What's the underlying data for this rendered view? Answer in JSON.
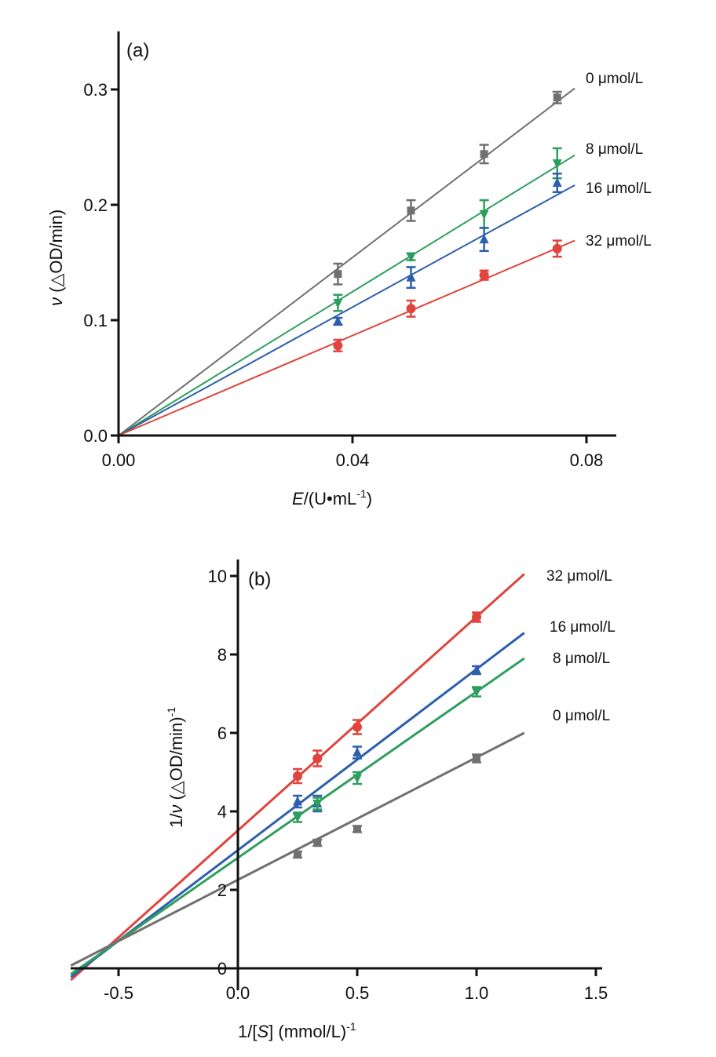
{
  "chart_data": [
    {
      "type": "line",
      "panel_label": "(a)",
      "xlabel_italic": "E",
      "xlabel_rest": "/(U•mL",
      "xlabel_sup": "-1",
      "xlabel_close": ")",
      "ylabel_italic": "ν",
      "ylabel_rest": " (△OD/min)",
      "xlim": [
        0,
        0.085
      ],
      "ylim": [
        0,
        0.35
      ],
      "xticks": [
        0,
        0.04,
        0.08
      ],
      "xtick_labels": [
        "0.00",
        "0.04",
        "0.08"
      ],
      "yticks": [
        0,
        0.1,
        0.2,
        0.3
      ],
      "ytick_labels": [
        "0.0",
        "0.1",
        "0.2",
        "0.3"
      ],
      "grid": false,
      "fit_x_range": [
        0,
        0.078
      ],
      "x": [
        0.0375,
        0.05,
        0.0625,
        0.075
      ],
      "series": [
        {
          "name": "0 μmol/L",
          "color": "#707070",
          "marker": "square",
          "values": [
            0.14,
            0.195,
            0.244,
            0.293
          ],
          "errors": [
            0.009,
            0.009,
            0.008,
            0.005
          ],
          "fit": [
            0,
            0.301
          ]
        },
        {
          "name": "8 μmol/L",
          "color": "#2e9e5e",
          "marker": "triangle-down",
          "values": [
            0.115,
            0.155,
            0.192,
            0.236
          ],
          "errors": [
            0.007,
            0.003,
            0.012,
            0.013
          ],
          "fit": [
            0,
            0.243
          ]
        },
        {
          "name": "16 μmol/L",
          "color": "#2d5fad",
          "marker": "triangle-up",
          "values": [
            0.099,
            0.137,
            0.17,
            0.219
          ],
          "errors": [
            0.003,
            0.009,
            0.01,
            0.008
          ],
          "fit": [
            0,
            0.217
          ]
        },
        {
          "name": "32 μmol/L",
          "color": "#e0443c",
          "marker": "circle",
          "values": [
            0.078,
            0.11,
            0.139,
            0.162
          ],
          "errors": [
            0.005,
            0.007,
            0.004,
            0.007
          ],
          "fit": [
            0,
            0.169
          ]
        }
      ]
    },
    {
      "type": "line",
      "panel_label": "(b)",
      "xlabel_pre": "1/[",
      "xlabel_italic": "S",
      "xlabel_rest": "] (mmol/L)",
      "xlabel_sup": "-1",
      "ylabel_pre": "1/",
      "ylabel_italic": "ν",
      "ylabel_rest": " (△OD/min)",
      "ylabel_sup": "-1",
      "xlim": [
        -0.7,
        1.53
      ],
      "ylim": [
        -0.5,
        10.5
      ],
      "xticks": [
        -0.5,
        0,
        0.5,
        1.0,
        1.5
      ],
      "xtick_labels": [
        "-0.5",
        "0.0",
        "0.5",
        "1.0",
        "1.5"
      ],
      "yticks": [
        0,
        2,
        4,
        6,
        8,
        10
      ],
      "ytick_labels": [
        "0",
        "2",
        "4",
        "6",
        "8",
        "10"
      ],
      "grid": false,
      "fit_x_range": [
        -0.7,
        1.2
      ],
      "x": [
        0.25,
        0.333,
        0.5,
        1.0
      ],
      "series": [
        {
          "name": "32 μmol/L",
          "color": "#e0443c",
          "marker": "circle",
          "values": [
            4.9,
            5.35,
            6.15,
            8.95
          ],
          "errors": [
            0.18,
            0.2,
            0.18,
            0.12
          ],
          "fit": [
            -0.3,
            10.05
          ]
        },
        {
          "name": "16 μmol/L",
          "color": "#2d5fad",
          "marker": "triangle-up",
          "values": [
            4.25,
            4.2,
            5.5,
            7.6
          ],
          "errors": [
            0.15,
            0.2,
            0.15,
            0.1
          ],
          "fit": [
            -0.22,
            8.55
          ]
        },
        {
          "name": "8 μmol/L",
          "color": "#2e9e5e",
          "marker": "triangle-down",
          "values": [
            3.85,
            4.2,
            4.85,
            7.05
          ],
          "errors": [
            0.12,
            0.15,
            0.15,
            0.12
          ],
          "fit": [
            -0.15,
            7.9
          ]
        },
        {
          "name": "0 μmol/L",
          "color": "#707070",
          "marker": "square",
          "values": [
            2.9,
            3.2,
            3.55,
            5.35
          ],
          "errors": [
            0.08,
            0.08,
            0.08,
            0.1
          ],
          "fit": [
            0.07,
            6.0
          ]
        }
      ]
    }
  ]
}
